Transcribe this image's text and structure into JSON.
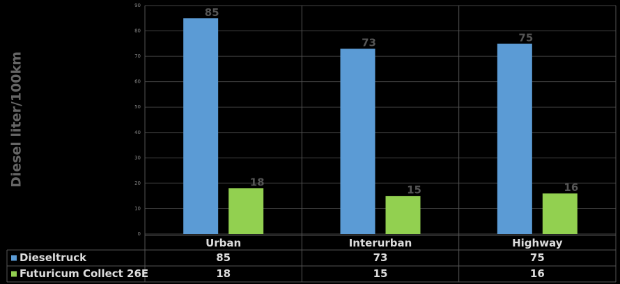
{
  "chart_data": {
    "type": "bar",
    "y_label": "Diesel liter/100km",
    "categories": [
      "Urban",
      "Interurban",
      "Highway"
    ],
    "series": [
      {
        "name": "Dieseltruck",
        "color": "#5b9bd5",
        "values": [
          85,
          73,
          75
        ]
      },
      {
        "name": "Futuricum Collect 26E",
        "color": "#92d050",
        "values": [
          18,
          15,
          16
        ]
      }
    ],
    "ylim": [
      0,
      90
    ],
    "yticks": [
      0,
      10,
      20,
      30,
      40,
      50,
      60,
      70,
      80,
      90
    ],
    "grid": true
  }
}
